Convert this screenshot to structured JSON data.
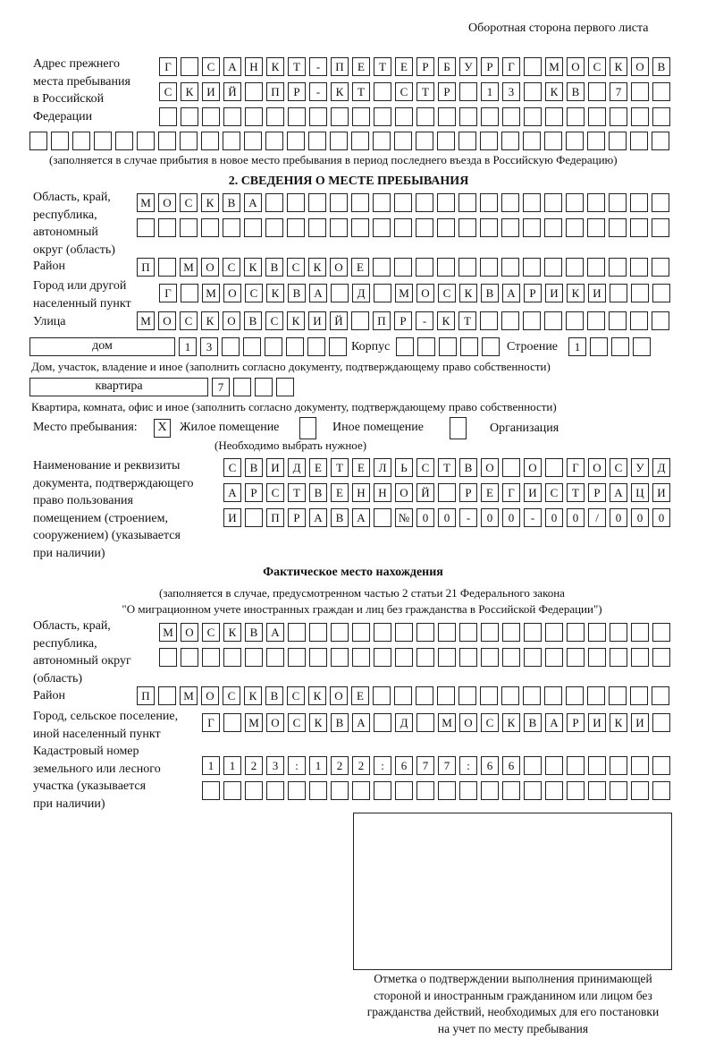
{
  "page_header": "Оборотная сторона первого листа",
  "previous_address": {
    "label": [
      "Адрес прежнего",
      "места пребывания",
      "в Российской",
      "Федерации"
    ],
    "rows": [
      [
        "Г",
        "",
        "С",
        "А",
        "Н",
        "К",
        "Т",
        "-",
        "П",
        "Е",
        "Т",
        "Е",
        "Р",
        "Б",
        "У",
        "Р",
        "Г",
        "",
        "М",
        "О",
        "С",
        "К",
        "О",
        "В"
      ],
      [
        "С",
        "К",
        "И",
        "Й",
        "",
        "П",
        "Р",
        "-",
        "К",
        "Т",
        "",
        "С",
        "Т",
        "Р",
        "",
        "1",
        "3",
        "",
        "К",
        "В",
        "",
        "7",
        "",
        ""
      ],
      [
        "",
        "",
        "",
        "",
        "",
        "",
        "",
        "",
        "",
        "",
        "",
        "",
        "",
        "",
        "",
        "",
        "",
        "",
        "",
        "",
        "",
        "",
        "",
        ""
      ],
      [
        "",
        "",
        "",
        "",
        "",
        "",
        "",
        "",
        "",
        "",
        "",
        "",
        "",
        "",
        "",
        "",
        "",
        "",
        "",
        "",
        "",
        "",
        "",
        "",
        "",
        "",
        "",
        "",
        "",
        ""
      ]
    ],
    "note": "(заполняется в случае прибытия в новое место пребывания в период последнего въезда в Российскую Федерацию)"
  },
  "section2": {
    "title": "2. СВЕДЕНИЯ О МЕСТЕ ПРЕБЫВАНИЯ",
    "region": {
      "label": [
        "Область, край,",
        "республика,",
        "автономный",
        "округ (область)"
      ],
      "rows": [
        [
          "М",
          "О",
          "С",
          "К",
          "В",
          "А",
          "",
          "",
          "",
          "",
          "",
          "",
          "",
          "",
          "",
          "",
          "",
          "",
          "",
          "",
          "",
          "",
          "",
          "",
          ""
        ],
        [
          "",
          "",
          "",
          "",
          "",
          "",
          "",
          "",
          "",
          "",
          "",
          "",
          "",
          "",
          "",
          "",
          "",
          "",
          "",
          "",
          "",
          "",
          "",
          "",
          ""
        ]
      ]
    },
    "district": {
      "label": [
        "Район"
      ],
      "rows": [
        [
          "П",
          "",
          "М",
          "О",
          "С",
          "К",
          "В",
          "С",
          "К",
          "О",
          "Е",
          "",
          "",
          "",
          "",
          "",
          "",
          "",
          "",
          "",
          "",
          "",
          "",
          "",
          ""
        ]
      ]
    },
    "city": {
      "label": [
        "Город или другой",
        "населенный пункт"
      ],
      "rows": [
        [
          "Г",
          "",
          "М",
          "О",
          "С",
          "К",
          "В",
          "А",
          "",
          "Д",
          "",
          "М",
          "О",
          "С",
          "К",
          "В",
          "А",
          "Р",
          "И",
          "К",
          "И",
          "",
          "",
          ""
        ]
      ]
    },
    "street": {
      "label": [
        "Улица"
      ],
      "rows": [
        [
          "М",
          "О",
          "С",
          "К",
          "О",
          "В",
          "С",
          "К",
          "И",
          "Й",
          "",
          "П",
          "Р",
          "-",
          "К",
          "Т",
          "",
          "",
          "",
          "",
          "",
          "",
          "",
          "",
          ""
        ]
      ]
    },
    "house": {
      "type": "дом",
      "cells": [
        "1",
        "3",
        "",
        "",
        "",
        "",
        "",
        ""
      ],
      "korpus_label": "Корпус",
      "korpus_cells": [
        "",
        "",
        "",
        "",
        ""
      ],
      "building_label": "Строение",
      "building_cells": [
        "1",
        "",
        "",
        ""
      ],
      "note": "Дом, участок, владение и иное (заполнить согласно документу, подтверждающему право собственности)"
    },
    "apartment": {
      "type": "квартира",
      "cells": [
        "7",
        "",
        "",
        ""
      ],
      "note": "Квартира, комната, офис и иное (заполнить согласно документу, подтверждающему право собственности)"
    },
    "stay_place": {
      "label": "Место пребывания:",
      "options": [
        {
          "label": "Жилое помещение",
          "mark": "X",
          "checked": true
        },
        {
          "label": "Иное помещение",
          "mark": "",
          "checked": false
        },
        {
          "label": "Организация",
          "mark": "",
          "checked": false
        }
      ],
      "hint": "(Необходимо выбрать нужное)"
    },
    "document": {
      "label": [
        "Наименование и реквизиты",
        "документа, подтверждающего",
        "право пользования",
        "помещением (строением,",
        "сооружением) (указывается",
        "при наличии)"
      ],
      "rows": [
        [
          "С",
          "В",
          "И",
          "Д",
          "Е",
          "Т",
          "Е",
          "Л",
          "Ь",
          "С",
          "Т",
          "В",
          "О",
          "",
          "О",
          "",
          "Г",
          "О",
          "С",
          "У",
          "Д"
        ],
        [
          "А",
          "Р",
          "С",
          "Т",
          "В",
          "Е",
          "Н",
          "Н",
          "О",
          "Й",
          "",
          "Р",
          "Е",
          "Г",
          "И",
          "С",
          "Т",
          "Р",
          "А",
          "Ц",
          "И"
        ],
        [
          "И",
          "",
          "П",
          "Р",
          "А",
          "В",
          "А",
          "",
          "№",
          "0",
          "0",
          "-",
          "0",
          "0",
          "-",
          "0",
          "0",
          "/",
          "0",
          "0",
          "0"
        ]
      ]
    }
  },
  "actual_location": {
    "title": "Фактическое место нахождения",
    "note": [
      "(заполняется в случае, предусмотренном частью 2 статьи 21 Федерального закона",
      "\"О миграционном учете иностранных граждан и лиц без гражданства в Российской Федерации\")"
    ],
    "region": {
      "label": [
        "Область, край,",
        "республика,",
        "автономный округ",
        "(область)"
      ],
      "rows": [
        [
          "М",
          "О",
          "С",
          "К",
          "В",
          "А",
          "",
          "",
          "",
          "",
          "",
          "",
          "",
          "",
          "",
          "",
          "",
          "",
          "",
          "",
          "",
          "",
          "",
          ""
        ],
        [
          "",
          "",
          "",
          "",
          "",
          "",
          "",
          "",
          "",
          "",
          "",
          "",
          "",
          "",
          "",
          "",
          "",
          "",
          "",
          "",
          "",
          "",
          "",
          ""
        ]
      ]
    },
    "district": {
      "label": [
        "Район"
      ],
      "rows": [
        [
          "П",
          "",
          "М",
          "О",
          "С",
          "К",
          "В",
          "С",
          "К",
          "О",
          "Е",
          "",
          "",
          "",
          "",
          "",
          "",
          "",
          "",
          "",
          "",
          "",
          "",
          "",
          ""
        ]
      ]
    },
    "city": {
      "label": [
        "Город, сельское поселение,",
        "иной населенный пункт"
      ],
      "rows": [
        [
          "Г",
          "",
          "М",
          "О",
          "С",
          "К",
          "В",
          "А",
          "",
          "Д",
          "",
          "М",
          "О",
          "С",
          "К",
          "В",
          "А",
          "Р",
          "И",
          "К",
          "И",
          ""
        ]
      ]
    },
    "cadastral": {
      "label": [
        "Кадастровый номер",
        "земельного или лесного",
        "участка (указывается",
        "при наличии)"
      ],
      "rows": [
        [
          "1",
          "1",
          "2",
          "3",
          ":",
          "1",
          "2",
          "2",
          ":",
          "6",
          "7",
          "7",
          ":",
          "6",
          "6",
          "",
          "",
          "",
          "",
          "",
          "",
          ""
        ],
        [
          "",
          "",
          "",
          "",
          "",
          "",
          "",
          "",
          "",
          "",
          "",
          "",
          "",
          "",
          "",
          "",
          "",
          "",
          "",
          "",
          "",
          ""
        ]
      ]
    }
  },
  "confirmation": {
    "caption": [
      "Отметка о подтверждении выполнения принимающей",
      "стороной и иностранным гражданином или лицом без",
      "гражданства действий, необходимых для его постановки",
      "на учет по месту пребывания"
    ]
  }
}
